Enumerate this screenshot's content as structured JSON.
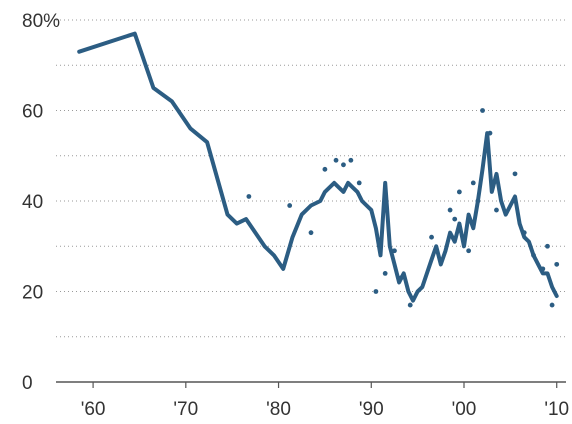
{
  "chart_data": {
    "type": "line",
    "title": "",
    "xlabel": "",
    "ylabel": "",
    "xlim": [
      1956,
      2011
    ],
    "ylim": [
      0,
      80
    ],
    "grid": true,
    "y_ticks": [
      {
        "value": 0,
        "label": "0"
      },
      {
        "value": 20,
        "label": "20"
      },
      {
        "value": 40,
        "label": "40"
      },
      {
        "value": 60,
        "label": "60"
      },
      {
        "value": 80,
        "label": "80%"
      }
    ],
    "y_minor_gridlines": [
      10,
      30,
      50,
      70
    ],
    "x_ticks": [
      {
        "value": 1960,
        "label": "'60"
      },
      {
        "value": 1970,
        "label": "'70"
      },
      {
        "value": 1980,
        "label": "'80"
      },
      {
        "value": 1990,
        "label": "'90"
      },
      {
        "value": 2000,
        "label": "'00"
      },
      {
        "value": 2010,
        "label": "'10"
      }
    ],
    "line_color": "#2c5d83",
    "point_color": "#2c5d83",
    "series": [
      {
        "kind": "line",
        "x": [
          1958.5,
          1964.5,
          1966.5,
          1968.5,
          1970.5,
          1972.3,
          1974.5,
          1975.5,
          1976.5,
          1977.5,
          1978.5,
          1979.5,
          1980.5,
          1981.5,
          1982.5,
          1983.5,
          1984.5,
          1985,
          1986,
          1986.5,
          1987,
          1987.5,
          1988,
          1988.5,
          1989,
          1989.5,
          1990,
          1990.5,
          1991,
          1991.5,
          1992,
          1992.5,
          1993,
          1993.5,
          1994,
          1994.5,
          1995,
          1995.5,
          1996,
          1996.5,
          1997,
          1997.5,
          1998,
          1998.5,
          1999,
          1999.5,
          2000,
          2000.5,
          2001,
          2001.5,
          2002,
          2002.5,
          2003,
          2003.5,
          2004,
          2004.5,
          2005,
          2005.5,
          2006,
          2006.5,
          2007,
          2007.5,
          2008,
          2008.5,
          2009,
          2009.5,
          2010
        ],
        "y": [
          73,
          77,
          65,
          62,
          56,
          53,
          37,
          35,
          36,
          33,
          30,
          28,
          25,
          32,
          37,
          39,
          40,
          42,
          44,
          43,
          42,
          44,
          43,
          42,
          40,
          39,
          38,
          34,
          28,
          44,
          30,
          26,
          22,
          24,
          20,
          18,
          20,
          21,
          24,
          27,
          30,
          26,
          29,
          33,
          31,
          35,
          30,
          37,
          34,
          40,
          47,
          55,
          42,
          46,
          40,
          37,
          39,
          41,
          35,
          32,
          31,
          28,
          26,
          24,
          24,
          21,
          19
        ]
      },
      {
        "kind": "points",
        "x": [
          1976.8,
          1981.2,
          1983.5,
          1985,
          1986.2,
          1987,
          1987.8,
          1988.7,
          1990.5,
          1991.5,
          1992.5,
          1993.2,
          1994.2,
          1996.5,
          1998.5,
          1999,
          1999.5,
          2000.5,
          2001,
          2001.5,
          2002,
          2002.8,
          2003.5,
          2005.5,
          2006.5,
          2007.5,
          2008.5,
          2009,
          2009.5,
          2010
        ],
        "y": [
          41,
          39,
          33,
          47,
          49,
          48,
          49,
          44,
          20,
          24,
          29,
          23,
          17,
          32,
          38,
          36,
          42,
          29,
          44,
          40,
          60,
          55,
          38,
          46,
          33,
          28,
          25,
          30,
          17,
          26
        ]
      }
    ]
  }
}
